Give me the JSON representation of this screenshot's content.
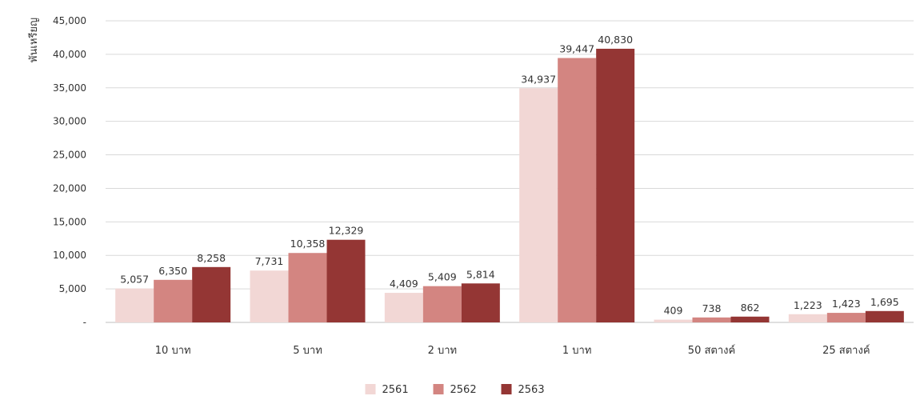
{
  "chart_data": {
    "type": "bar",
    "title": "",
    "xlabel": "",
    "ylabel": "พันเหรียญ",
    "ylim": [
      0,
      45000
    ],
    "yticks": [
      0,
      5000,
      10000,
      15000,
      20000,
      25000,
      30000,
      35000,
      40000,
      45000
    ],
    "ytick_labels": [
      "-",
      "5,000",
      "10,000",
      "15,000",
      "20,000",
      "25,000",
      "30,000",
      "35,000",
      "40,000",
      "45,000"
    ],
    "grid": true,
    "legend_position": "bottom",
    "categories": [
      "10 บาท",
      "5 บาท",
      "2 บาท",
      "1 บาท",
      "50 สตางค์",
      "25 สตางค์"
    ],
    "series": [
      {
        "name": "2561",
        "color": "#f2d7d5",
        "values": [
          5057,
          7731,
          4409,
          34937,
          409,
          1223
        ],
        "labels": [
          "5,057",
          "7,731",
          "4,409",
          "34,937",
          "409",
          "1,223"
        ]
      },
      {
        "name": "2562",
        "color": "#d38581",
        "values": [
          6350,
          10358,
          5409,
          39447,
          738,
          1423
        ],
        "labels": [
          "6,350",
          "10,358",
          "5,409",
          "39,447",
          "738",
          "1,423"
        ]
      },
      {
        "name": "2563",
        "color": "#943634",
        "values": [
          8258,
          12329,
          5814,
          40830,
          862,
          1695
        ],
        "labels": [
          "8,258",
          "12,329",
          "5,814",
          "40,830",
          "862",
          "1,695"
        ]
      }
    ]
  }
}
